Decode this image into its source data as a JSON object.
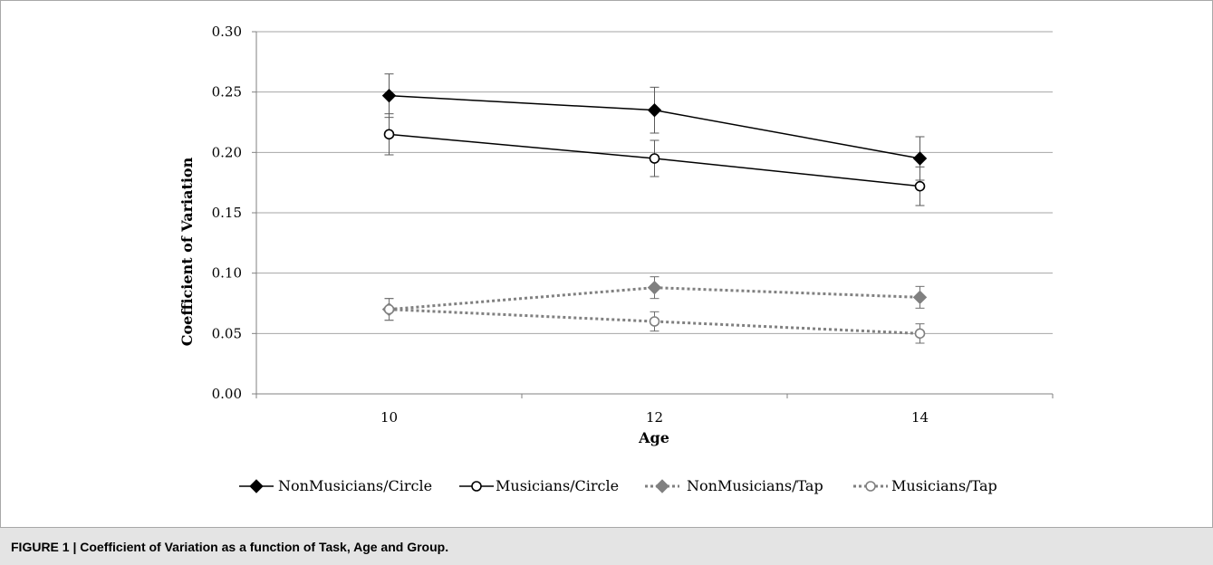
{
  "caption": "FIGURE 1 | Coefficient of Variation as a function of Task, Age and Group.",
  "chart_data": {
    "type": "line",
    "title": "",
    "xlabel": "Age",
    "ylabel": "Coefficient of Variation",
    "categories": [
      "10",
      "12",
      "14"
    ],
    "ylim": [
      0,
      0.3
    ],
    "yticks": [
      "0.00",
      "0.05",
      "0.10",
      "0.15",
      "0.20",
      "0.25",
      "0.30"
    ],
    "grid": "horizontal",
    "legend_position": "bottom",
    "series": [
      {
        "name": "NonMusicians/Circle",
        "values": [
          0.247,
          0.235,
          0.195
        ],
        "error": [
          0.018,
          0.019,
          0.018
        ],
        "color": "#000000",
        "marker": "diamond-filled",
        "line": "solid"
      },
      {
        "name": "Musicians/Circle",
        "values": [
          0.215,
          0.195,
          0.172
        ],
        "error": [
          0.017,
          0.015,
          0.016
        ],
        "color": "#000000",
        "marker": "circle-open",
        "line": "solid"
      },
      {
        "name": "NonMusicians/Tap",
        "values": [
          0.07,
          0.088,
          0.08
        ],
        "error": [
          0.009,
          0.009,
          0.009
        ],
        "color": "#808080",
        "marker": "diamond-filled",
        "line": "dotted"
      },
      {
        "name": "Musicians/Tap",
        "values": [
          0.07,
          0.06,
          0.05
        ],
        "error": [
          0.009,
          0.008,
          0.008
        ],
        "color": "#808080",
        "marker": "circle-open",
        "line": "dotted"
      }
    ]
  }
}
